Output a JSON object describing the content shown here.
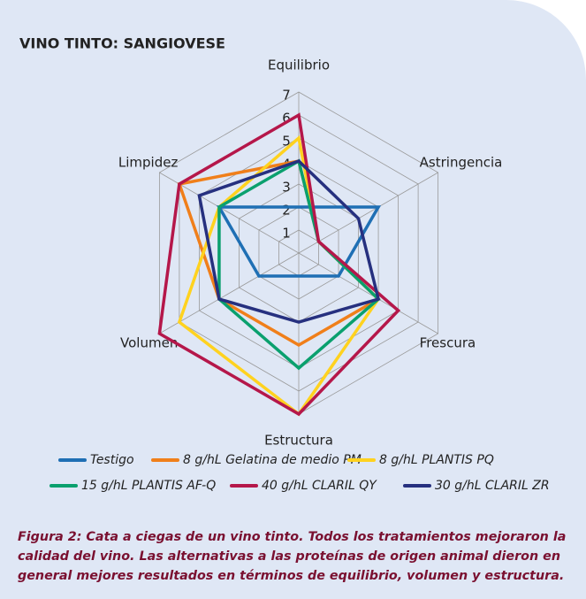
{
  "chart_data": {
    "type": "radar",
    "title": "VINO TINTO: SANGIOVESE",
    "categories": [
      "Equilibrio",
      "Astringencia",
      "Frescura",
      "Estructura",
      "Volumen",
      "Limpidez"
    ],
    "rlim": [
      0,
      7
    ],
    "rticks": [
      1,
      2,
      3,
      4,
      5,
      6,
      7
    ],
    "grid": true,
    "legend": "bottom",
    "series": [
      {
        "name": "Testigo",
        "color": "#1f6fb4",
        "values": [
          2,
          4,
          2,
          1,
          2,
          4
        ]
      },
      {
        "name": "8 g/hL Gelatina de medio PM",
        "color": "#f07f1a",
        "values": [
          4,
          1,
          4,
          4,
          4,
          6
        ]
      },
      {
        "name": "8 g/hL PLANTIS PQ",
        "color": "#ffd21f",
        "values": [
          5,
          1,
          4,
          7,
          6,
          4
        ]
      },
      {
        "name": "15 g/hL PLANTIS AF-Q",
        "color": "#0aa06e",
        "values": [
          4,
          1,
          4,
          5,
          4,
          4
        ]
      },
      {
        "name": "40 g/hL CLARIL QY",
        "color": "#b5174a",
        "values": [
          6,
          1,
          5,
          7,
          7,
          6
        ]
      },
      {
        "name": "30 g/hL CLARIL ZR",
        "color": "#26307f",
        "values": [
          4,
          3,
          4,
          3,
          4,
          5
        ]
      }
    ],
    "caption": "Figura 2: Cata a ciegas de un vino tinto. Todos los tratamientos mejoraron la calidad del vino. Las alternativas a las proteínas de origen animal dieron en general mejores resultados en términos de equilibrio, volumen y estructura."
  }
}
